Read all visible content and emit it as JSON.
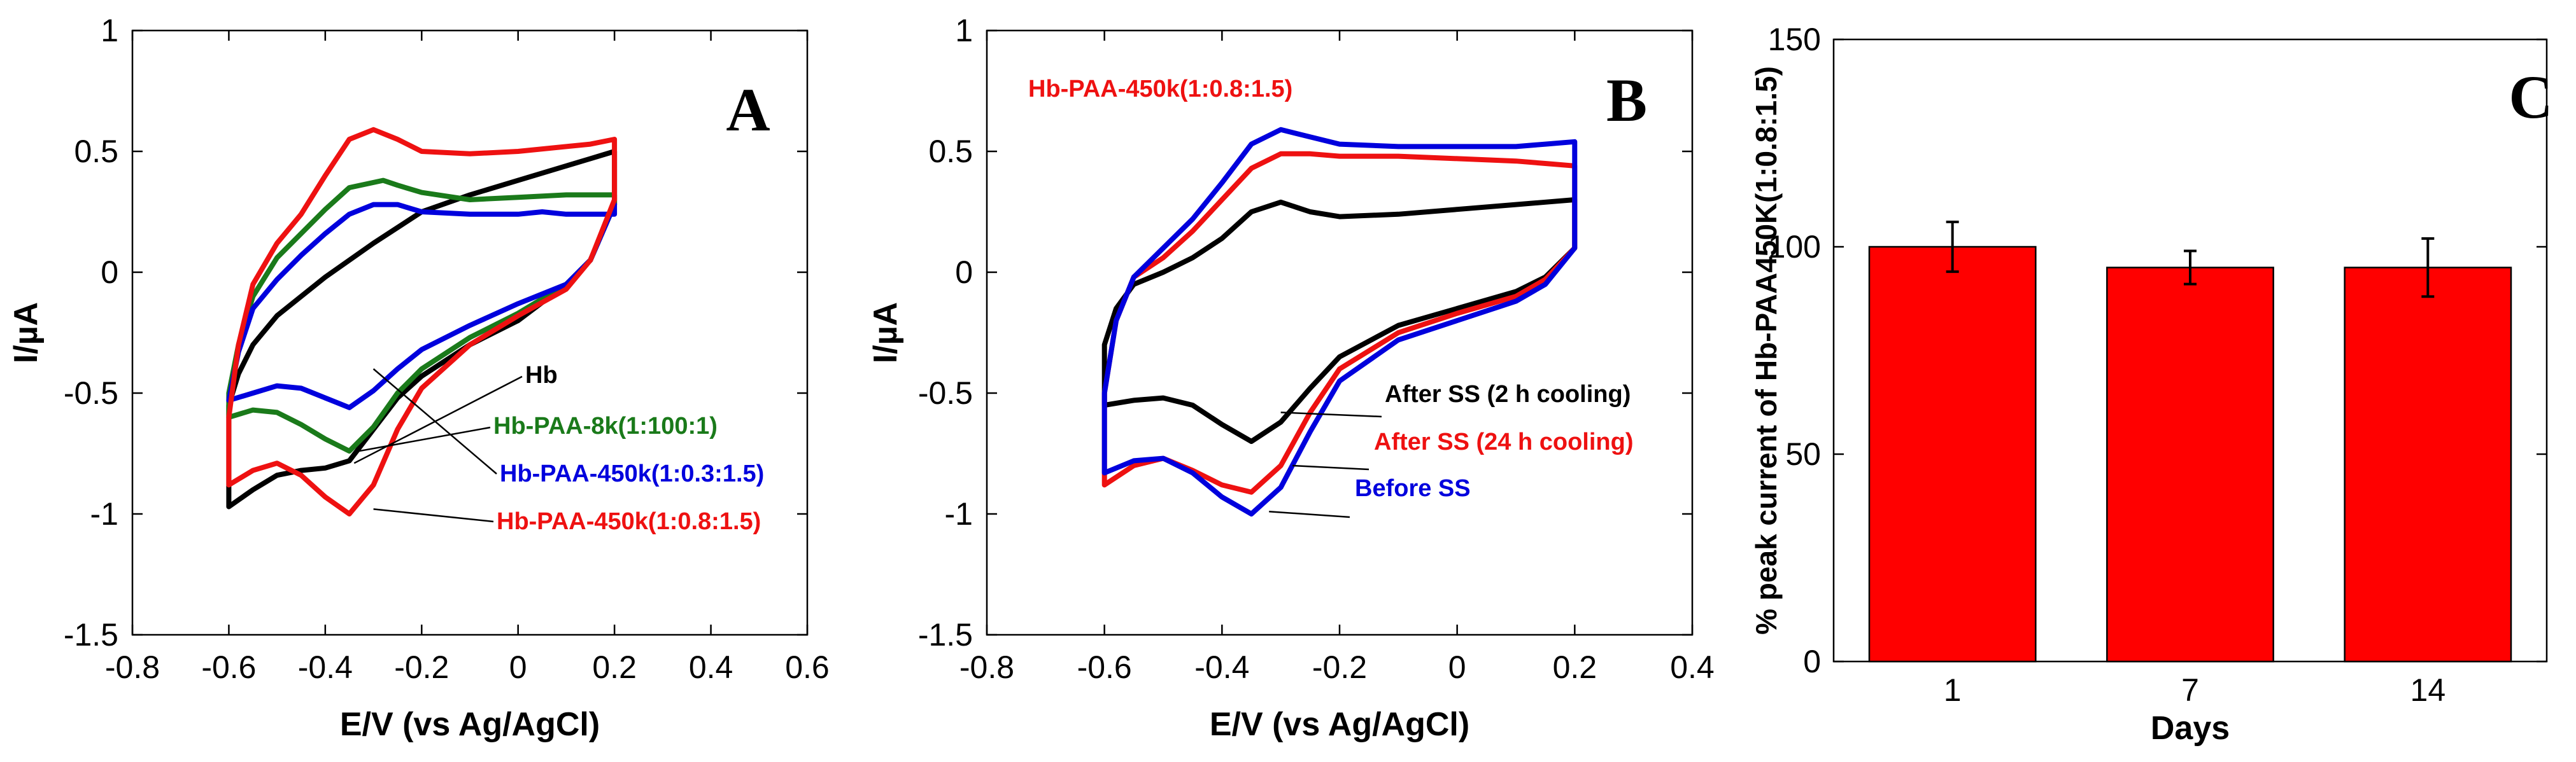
{
  "chart_data": [
    {
      "type": "line",
      "panel_label": "A",
      "xlabel": "E/V (vs Ag/AgCl)",
      "ylabel": "I/µA",
      "xlim": [
        -0.8,
        0.6
      ],
      "ylim": [
        -1.5,
        1
      ],
      "xticks": [
        -0.8,
        -0.6,
        -0.4,
        -0.2,
        0,
        0.2,
        0.4,
        0.6
      ],
      "yticks": [
        -1.5,
        -1,
        -0.5,
        0,
        0.5,
        1
      ],
      "xtick_labels": [
        "-0.8",
        "-0.6",
        "-0.4",
        "-0.2",
        "0",
        "0.2",
        "0.4",
        "0.6"
      ],
      "ytick_labels": [
        "-1.5",
        "-1",
        "-0.5",
        "0",
        "0.5",
        "1"
      ],
      "series": [
        {
          "name": "Hb",
          "color": "#000000",
          "points": [
            [
              -0.6,
              -0.97
            ],
            [
              -0.55,
              -0.9
            ],
            [
              -0.5,
              -0.84
            ],
            [
              -0.45,
              -0.82
            ],
            [
              -0.4,
              -0.81
            ],
            [
              -0.35,
              -0.78
            ],
            [
              -0.3,
              -0.65
            ],
            [
              -0.25,
              -0.52
            ],
            [
              -0.2,
              -0.43
            ],
            [
              -0.1,
              -0.3
            ],
            [
              0,
              -0.2
            ],
            [
              0.1,
              -0.05
            ],
            [
              0.15,
              0.05
            ],
            [
              0.2,
              0.28
            ],
            [
              0.2,
              0.5
            ],
            [
              0.15,
              0.47
            ],
            [
              0.1,
              0.44
            ],
            [
              0,
              0.38
            ],
            [
              -0.1,
              0.32
            ],
            [
              -0.2,
              0.25
            ],
            [
              -0.3,
              0.12
            ],
            [
              -0.4,
              -0.02
            ],
            [
              -0.5,
              -0.18
            ],
            [
              -0.55,
              -0.3
            ],
            [
              -0.58,
              -0.42
            ],
            [
              -0.6,
              -0.55
            ],
            [
              -0.6,
              -0.97
            ]
          ],
          "annotation": "Hb",
          "annotation_target": [
            -0.34,
            -0.79
          ]
        },
        {
          "name": "Hb-PAA-8k(1:100:1)",
          "color": "#1a7a1a",
          "points": [
            [
              -0.6,
              -0.6
            ],
            [
              -0.55,
              -0.57
            ],
            [
              -0.5,
              -0.58
            ],
            [
              -0.45,
              -0.63
            ],
            [
              -0.4,
              -0.69
            ],
            [
              -0.35,
              -0.74
            ],
            [
              -0.3,
              -0.64
            ],
            [
              -0.25,
              -0.5
            ],
            [
              -0.2,
              -0.4
            ],
            [
              -0.1,
              -0.27
            ],
            [
              0,
              -0.17
            ],
            [
              0.1,
              -0.05
            ],
            [
              0.15,
              0.05
            ],
            [
              0.2,
              0.28
            ],
            [
              0.2,
              0.32
            ],
            [
              0.15,
              0.32
            ],
            [
              0.1,
              0.32
            ],
            [
              0,
              0.31
            ],
            [
              -0.1,
              0.3
            ],
            [
              -0.2,
              0.33
            ],
            [
              -0.25,
              0.36
            ],
            [
              -0.28,
              0.38
            ],
            [
              -0.35,
              0.35
            ],
            [
              -0.4,
              0.26
            ],
            [
              -0.45,
              0.16
            ],
            [
              -0.5,
              0.06
            ],
            [
              -0.55,
              -0.1
            ],
            [
              -0.58,
              -0.3
            ],
            [
              -0.6,
              -0.5
            ],
            [
              -0.6,
              -0.6
            ]
          ],
          "annotation": "Hb-PAA-8k(1:100:1)",
          "annotation_target": [
            -0.33,
            -0.74
          ]
        },
        {
          "name": "Hb-PAA-450k(1:0.3:1.5)",
          "color": "#0000dd",
          "points": [
            [
              -0.6,
              -0.53
            ],
            [
              -0.55,
              -0.5
            ],
            [
              -0.5,
              -0.47
            ],
            [
              -0.45,
              -0.48
            ],
            [
              -0.4,
              -0.52
            ],
            [
              -0.35,
              -0.56
            ],
            [
              -0.3,
              -0.49
            ],
            [
              -0.25,
              -0.4
            ],
            [
              -0.2,
              -0.32
            ],
            [
              -0.1,
              -0.22
            ],
            [
              0,
              -0.13
            ],
            [
              0.1,
              -0.05
            ],
            [
              0.15,
              0.05
            ],
            [
              0.2,
              0.28
            ],
            [
              0.2,
              0.24
            ],
            [
              0.15,
              0.24
            ],
            [
              0.1,
              0.24
            ],
            [
              0.05,
              0.25
            ],
            [
              0,
              0.24
            ],
            [
              -0.1,
              0.24
            ],
            [
              -0.2,
              0.25
            ],
            [
              -0.25,
              0.28
            ],
            [
              -0.3,
              0.28
            ],
            [
              -0.35,
              0.24
            ],
            [
              -0.4,
              0.16
            ],
            [
              -0.45,
              0.07
            ],
            [
              -0.5,
              -0.03
            ],
            [
              -0.55,
              -0.15
            ],
            [
              -0.58,
              -0.33
            ],
            [
              -0.6,
              -0.53
            ]
          ],
          "annotation": "Hb-PAA-450k(1:0.3:1.5)",
          "annotation_target": [
            -0.3,
            -0.4
          ]
        },
        {
          "name": "Hb-PAA-450k(1:0.8:1.5)",
          "color": "#ee1111",
          "points": [
            [
              -0.6,
              -0.88
            ],
            [
              -0.55,
              -0.82
            ],
            [
              -0.5,
              -0.79
            ],
            [
              -0.45,
              -0.84
            ],
            [
              -0.4,
              -0.93
            ],
            [
              -0.35,
              -1.0
            ],
            [
              -0.3,
              -0.88
            ],
            [
              -0.25,
              -0.65
            ],
            [
              -0.2,
              -0.48
            ],
            [
              -0.1,
              -0.3
            ],
            [
              0,
              -0.18
            ],
            [
              0.1,
              -0.07
            ],
            [
              0.15,
              0.05
            ],
            [
              0.2,
              0.3
            ],
            [
              0.2,
              0.55
            ],
            [
              0.15,
              0.53
            ],
            [
              0.1,
              0.52
            ],
            [
              0,
              0.5
            ],
            [
              -0.1,
              0.49
            ],
            [
              -0.2,
              0.5
            ],
            [
              -0.25,
              0.55
            ],
            [
              -0.3,
              0.59
            ],
            [
              -0.35,
              0.55
            ],
            [
              -0.4,
              0.4
            ],
            [
              -0.45,
              0.24
            ],
            [
              -0.5,
              0.12
            ],
            [
              -0.55,
              -0.05
            ],
            [
              -0.58,
              -0.3
            ],
            [
              -0.6,
              -0.6
            ],
            [
              -0.6,
              -0.88
            ]
          ],
          "annotation": "Hb-PAA-450k(1:0.8:1.5)",
          "annotation_target": [
            -0.3,
            -0.98
          ]
        }
      ]
    },
    {
      "type": "line",
      "panel_label": "B",
      "title": "Hb-PAA-450k(1:0.8:1.5)",
      "title_color": "#ee1111",
      "xlabel": "E/V (vs Ag/AgCl)",
      "ylabel": "I/µA",
      "xlim": [
        -0.8,
        0.4
      ],
      "ylim": [
        -1.5,
        1
      ],
      "xticks": [
        -0.8,
        -0.6,
        -0.4,
        -0.2,
        0,
        0.2,
        0.4
      ],
      "yticks": [
        -1.5,
        -1,
        -0.5,
        0,
        0.5,
        1
      ],
      "xtick_labels": [
        "-0.8",
        "-0.6",
        "-0.4",
        "-0.2",
        "0",
        "0.2",
        "0.4"
      ],
      "ytick_labels": [
        "-1.5",
        "-1",
        "-0.5",
        "0",
        "0.5",
        "1"
      ],
      "series": [
        {
          "name": "After SS (2 h cooling)",
          "color": "#000000",
          "points": [
            [
              -0.6,
              -0.55
            ],
            [
              -0.55,
              -0.53
            ],
            [
              -0.5,
              -0.52
            ],
            [
              -0.45,
              -0.55
            ],
            [
              -0.4,
              -0.63
            ],
            [
              -0.35,
              -0.7
            ],
            [
              -0.3,
              -0.62
            ],
            [
              -0.25,
              -0.48
            ],
            [
              -0.2,
              -0.35
            ],
            [
              -0.1,
              -0.22
            ],
            [
              0,
              -0.15
            ],
            [
              0.1,
              -0.08
            ],
            [
              0.15,
              -0.02
            ],
            [
              0.2,
              0.1
            ],
            [
              0.2,
              0.3
            ],
            [
              0.15,
              0.29
            ],
            [
              0.1,
              0.28
            ],
            [
              0,
              0.26
            ],
            [
              -0.1,
              0.24
            ],
            [
              -0.2,
              0.23
            ],
            [
              -0.25,
              0.25
            ],
            [
              -0.3,
              0.29
            ],
            [
              -0.35,
              0.25
            ],
            [
              -0.4,
              0.14
            ],
            [
              -0.45,
              0.06
            ],
            [
              -0.5,
              0.0
            ],
            [
              -0.55,
              -0.05
            ],
            [
              -0.58,
              -0.15
            ],
            [
              -0.6,
              -0.3
            ],
            [
              -0.6,
              -0.55
            ]
          ],
          "annotation": "After SS (2 h cooling)",
          "annotation_target": [
            -0.3,
            -0.58
          ]
        },
        {
          "name": "After SS (24 h cooling)",
          "color": "#ee1111",
          "points": [
            [
              -0.6,
              -0.88
            ],
            [
              -0.55,
              -0.8
            ],
            [
              -0.5,
              -0.77
            ],
            [
              -0.45,
              -0.82
            ],
            [
              -0.4,
              -0.88
            ],
            [
              -0.35,
              -0.91
            ],
            [
              -0.3,
              -0.8
            ],
            [
              -0.25,
              -0.58
            ],
            [
              -0.2,
              -0.4
            ],
            [
              -0.1,
              -0.25
            ],
            [
              0,
              -0.17
            ],
            [
              0.1,
              -0.1
            ],
            [
              0.15,
              -0.03
            ],
            [
              0.2,
              0.1
            ],
            [
              0.2,
              0.44
            ],
            [
              0.15,
              0.45
            ],
            [
              0.1,
              0.46
            ],
            [
              0,
              0.47
            ],
            [
              -0.1,
              0.48
            ],
            [
              -0.2,
              0.48
            ],
            [
              -0.25,
              0.49
            ],
            [
              -0.3,
              0.49
            ],
            [
              -0.35,
              0.43
            ],
            [
              -0.4,
              0.3
            ],
            [
              -0.45,
              0.17
            ],
            [
              -0.5,
              0.06
            ],
            [
              -0.55,
              -0.02
            ],
            [
              -0.58,
              -0.2
            ],
            [
              -0.6,
              -0.5
            ],
            [
              -0.6,
              -0.88
            ]
          ],
          "annotation": "After SS (24 h cooling)",
          "annotation_target": [
            -0.28,
            -0.8
          ]
        },
        {
          "name": "Before SS",
          "color": "#0000dd",
          "points": [
            [
              -0.6,
              -0.83
            ],
            [
              -0.55,
              -0.78
            ],
            [
              -0.5,
              -0.77
            ],
            [
              -0.45,
              -0.83
            ],
            [
              -0.4,
              -0.93
            ],
            [
              -0.35,
              -1.0
            ],
            [
              -0.3,
              -0.89
            ],
            [
              -0.25,
              -0.66
            ],
            [
              -0.2,
              -0.45
            ],
            [
              -0.1,
              -0.28
            ],
            [
              0,
              -0.2
            ],
            [
              0.1,
              -0.12
            ],
            [
              0.15,
              -0.05
            ],
            [
              0.2,
              0.1
            ],
            [
              0.2,
              0.54
            ],
            [
              0.15,
              0.53
            ],
            [
              0.1,
              0.52
            ],
            [
              0,
              0.52
            ],
            [
              -0.1,
              0.52
            ],
            [
              -0.2,
              0.53
            ],
            [
              -0.25,
              0.56
            ],
            [
              -0.3,
              0.59
            ],
            [
              -0.35,
              0.53
            ],
            [
              -0.4,
              0.37
            ],
            [
              -0.45,
              0.22
            ],
            [
              -0.5,
              0.1
            ],
            [
              -0.55,
              -0.02
            ],
            [
              -0.58,
              -0.2
            ],
            [
              -0.6,
              -0.5
            ],
            [
              -0.6,
              -0.83
            ]
          ],
          "annotation": "Before SS",
          "annotation_target": [
            -0.32,
            -0.99
          ]
        }
      ]
    },
    {
      "type": "bar",
      "panel_label": "C",
      "xlabel": "Days",
      "ylabel": "% peak current of Hb-PAA450K(1:0.8:1.5)",
      "categories": [
        "1",
        "7",
        "14"
      ],
      "values": [
        100,
        95,
        95
      ],
      "errors": [
        6,
        4,
        7
      ],
      "ylim": [
        0,
        150
      ],
      "yticks": [
        0,
        50,
        100,
        150
      ],
      "ytick_labels": [
        "0",
        "50",
        "100",
        "150"
      ],
      "bar_color": "#ff0000"
    }
  ]
}
